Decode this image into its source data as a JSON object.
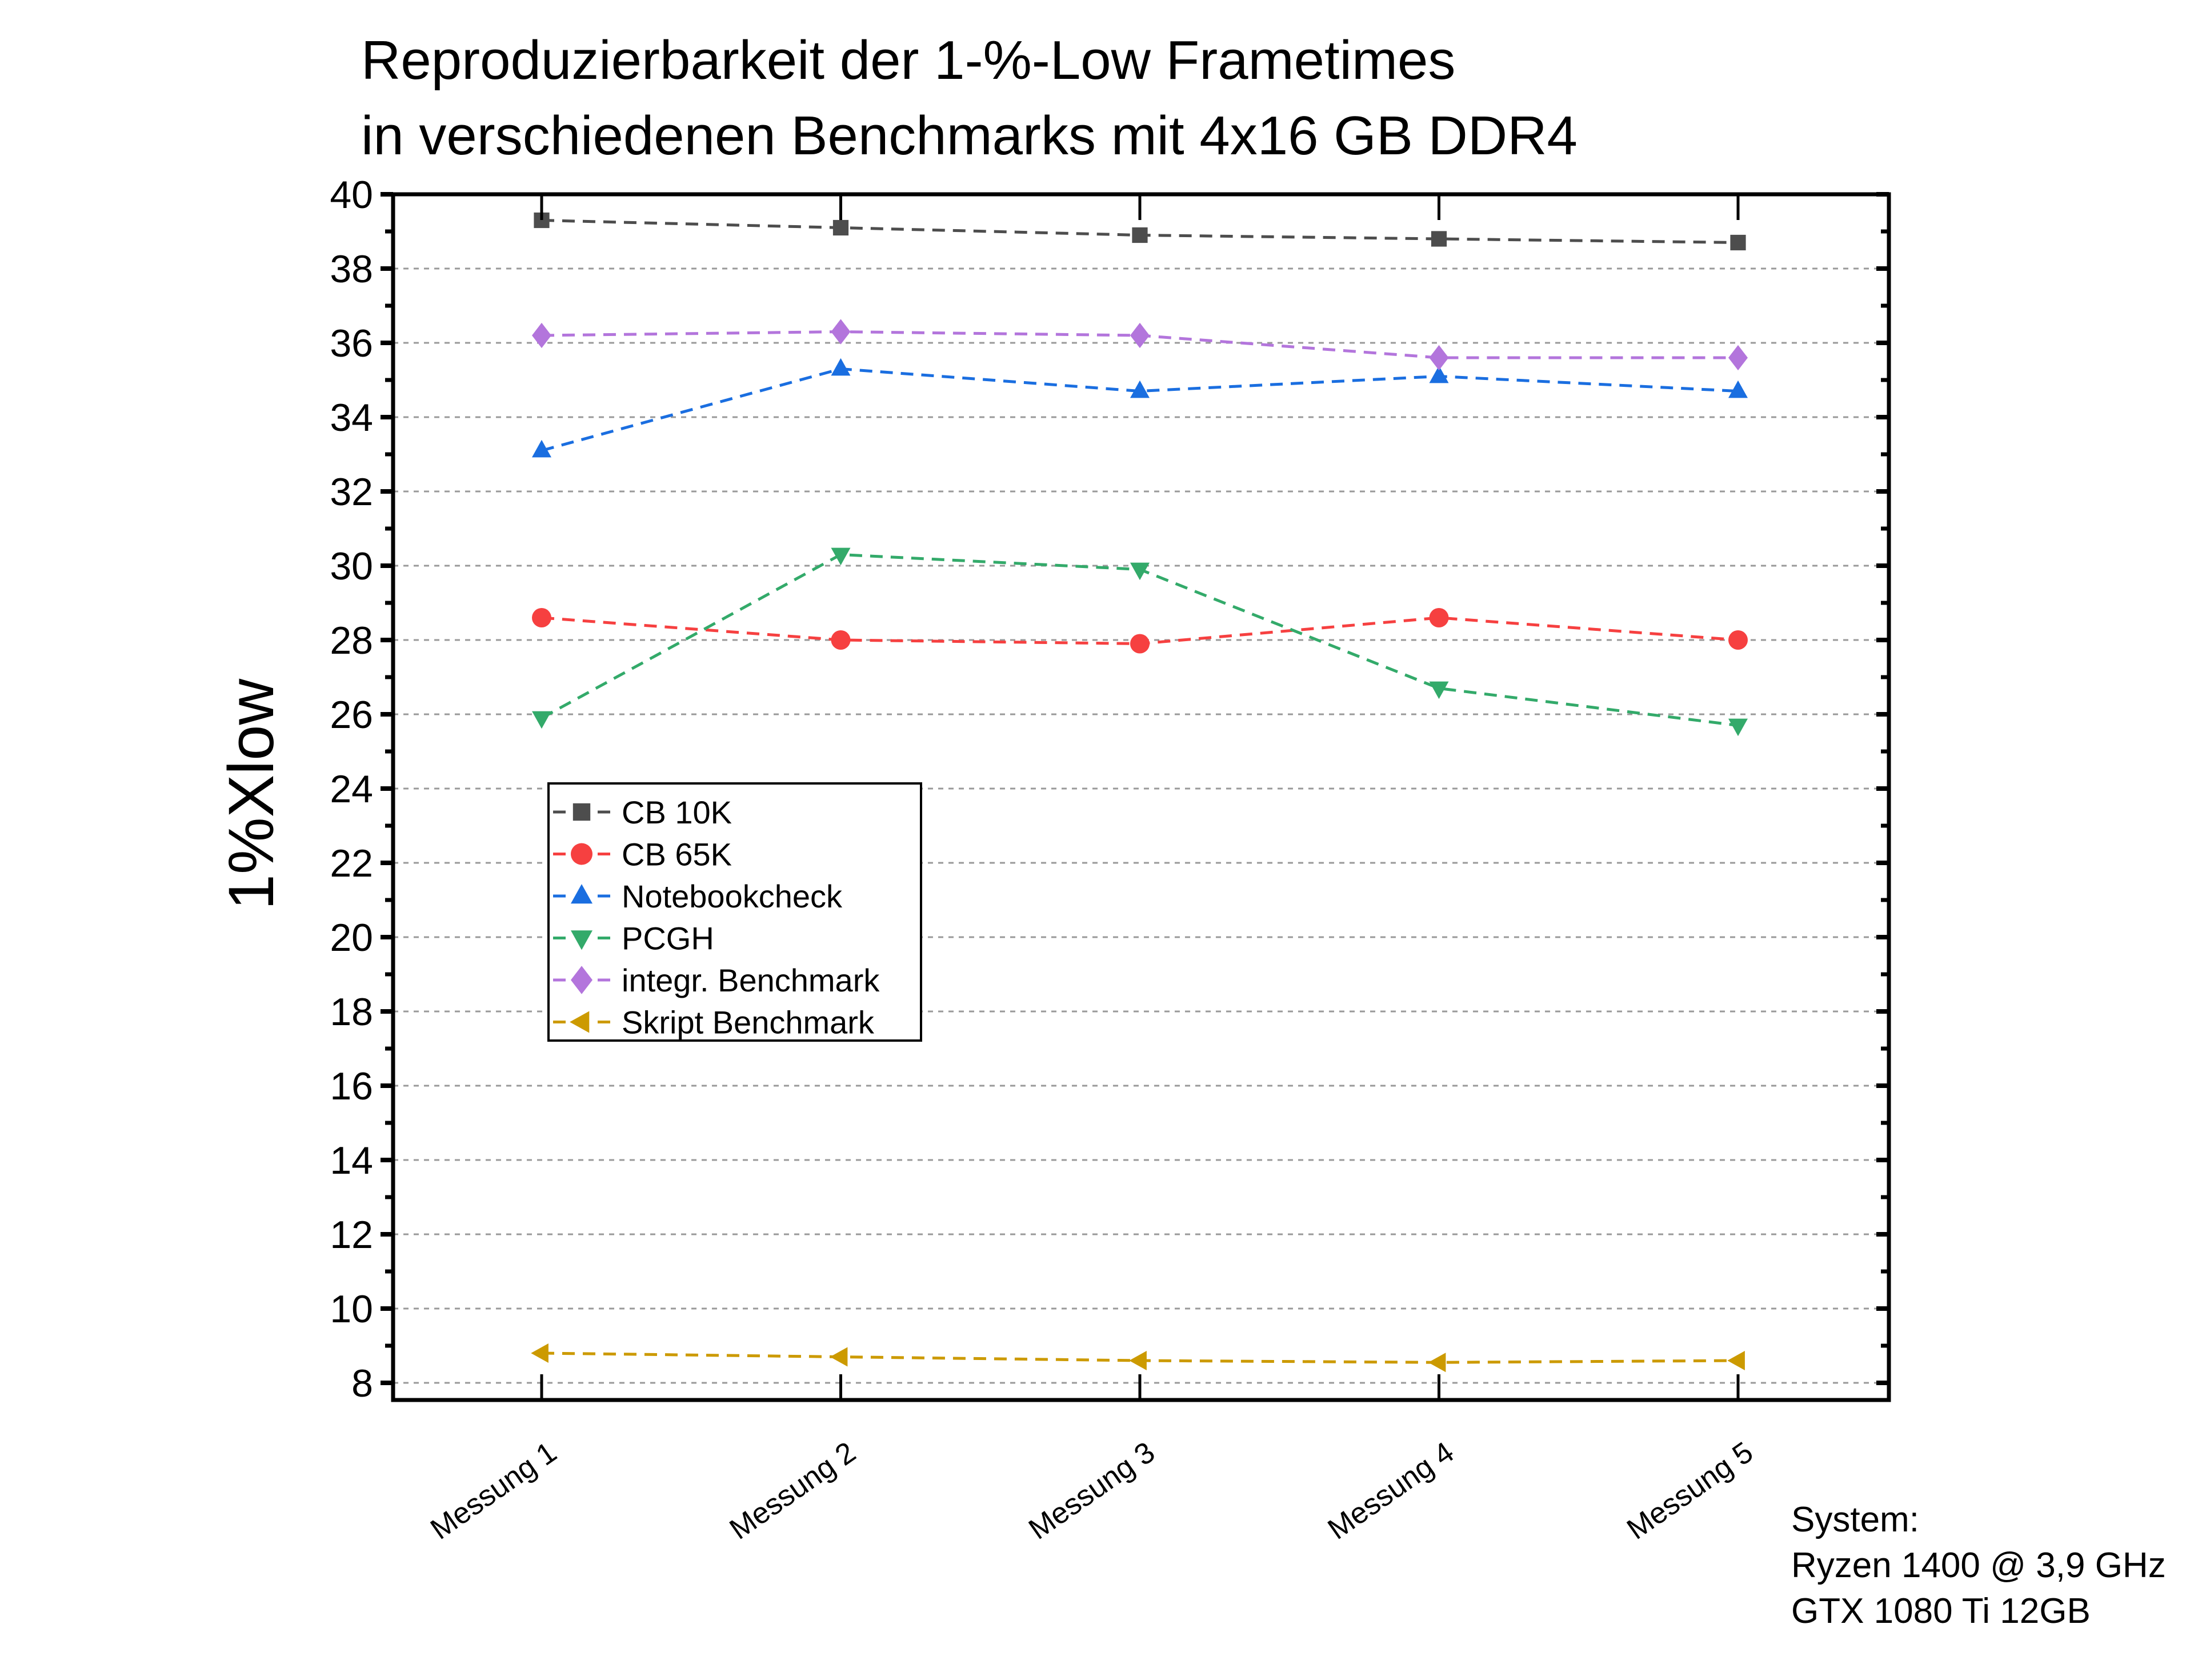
{
  "chart_data": {
    "type": "line",
    "title": [
      "Reproduzierbarkeit der 1-%-Low Frametimes",
      "in verschiedenen Benchmarks mit 4x16 GB DDR4"
    ],
    "xlabel": "",
    "ylabel": "1%Xlow",
    "categories": [
      "Messung 1",
      "Messung 2",
      "Messung 3",
      "Messung 4",
      "Messung 5"
    ],
    "ylim": [
      7.5,
      40
    ],
    "yticks": [
      8,
      10,
      12,
      14,
      16,
      18,
      20,
      22,
      24,
      26,
      28,
      30,
      32,
      34,
      36,
      38,
      40
    ],
    "grid": "horizontal dashed",
    "legend_position": "middle-left",
    "series": [
      {
        "name": "CB 10K",
        "color": "#4d4d4d",
        "marker": "square",
        "values": [
          39.3,
          39.1,
          38.9,
          38.8,
          38.7
        ]
      },
      {
        "name": "CB 65K",
        "color": "#f64040",
        "marker": "circle",
        "values": [
          28.6,
          28.0,
          27.9,
          28.6,
          28.0
        ]
      },
      {
        "name": "Notebookcheck",
        "color": "#1a6ee0",
        "marker": "triangle-up",
        "values": [
          33.1,
          35.3,
          34.7,
          35.1,
          34.7
        ]
      },
      {
        "name": "PCGH",
        "color": "#33aa6a",
        "marker": "triangle-down",
        "values": [
          25.9,
          30.3,
          29.9,
          26.7,
          25.7
        ]
      },
      {
        "name": "integr. Benchmark",
        "color": "#b375dc",
        "marker": "diamond",
        "values": [
          36.2,
          36.3,
          36.2,
          35.6,
          35.6
        ]
      },
      {
        "name": "Skript Benchmark",
        "color": "#cc9a00",
        "marker": "triangle-left",
        "values": [
          8.8,
          8.7,
          8.6,
          8.55,
          8.6
        ]
      }
    ],
    "annotation": [
      "System:",
      "Ryzen 1400 @ 3,9 GHz",
      "GTX 1080 Ti 12GB"
    ]
  }
}
